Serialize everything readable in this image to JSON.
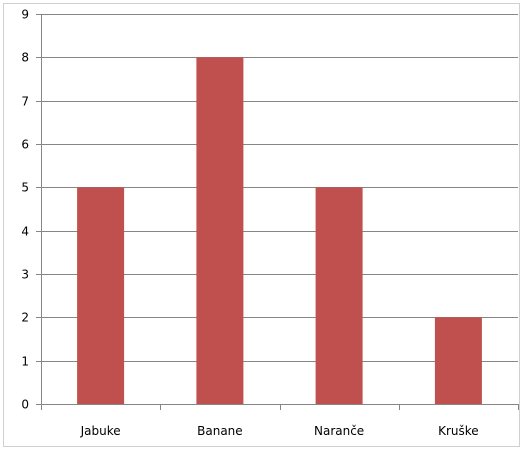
{
  "chart_data": {
    "type": "bar",
    "title": "",
    "xlabel": "",
    "ylabel": "",
    "categories": [
      "Jabuke",
      "Banane",
      "Naranče",
      "Kruške"
    ],
    "series": [
      {
        "values": [
          5,
          8,
          5,
          2
        ],
        "color": "#C0504D"
      }
    ],
    "ylim": [
      0,
      9
    ],
    "yticks": [
      0,
      1,
      2,
      3,
      4,
      5,
      6,
      7,
      8,
      9
    ],
    "grid": true,
    "legend": "none"
  }
}
